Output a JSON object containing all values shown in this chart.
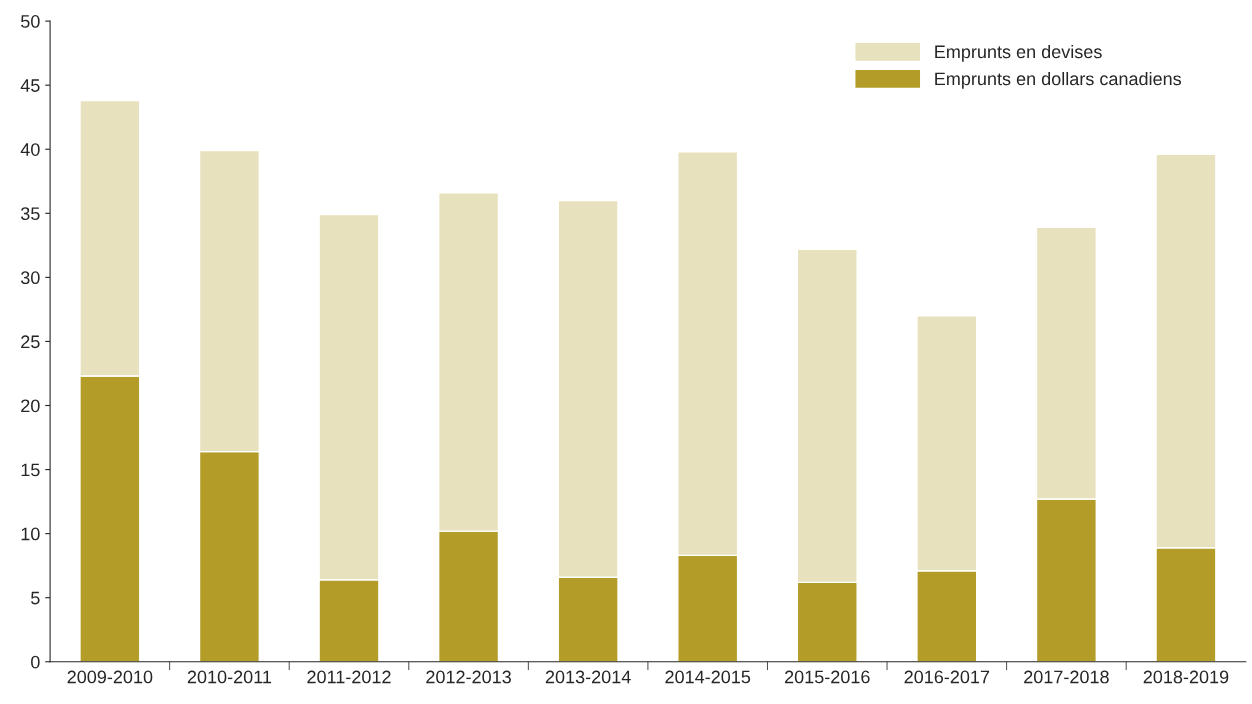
{
  "chart_data": {
    "type": "bar",
    "stacked": true,
    "categories": [
      "2009-2010",
      "2010-2011",
      "2011-2012",
      "2012-2013",
      "2013-2014",
      "2014-2015",
      "2015-2016",
      "2016-2017",
      "2017-2018",
      "2018-2019"
    ],
    "series": [
      {
        "name": "Emprunts en dollars canadiens",
        "color": "#b39c27",
        "values": [
          22.3,
          16.4,
          6.4,
          10.2,
          6.6,
          8.3,
          6.2,
          7.1,
          12.7,
          8.9
        ]
      },
      {
        "name": "Emprunts en devises",
        "color": "#e8e1bd",
        "values": [
          21.5,
          23.5,
          28.5,
          26.4,
          29.4,
          31.5,
          26.0,
          19.9,
          21.2,
          30.7
        ]
      }
    ],
    "ylim": [
      0,
      50
    ],
    "yticks": [
      0,
      5,
      10,
      15,
      20,
      25,
      30,
      35,
      40,
      45,
      50
    ],
    "grid": false,
    "legend": "top right"
  }
}
